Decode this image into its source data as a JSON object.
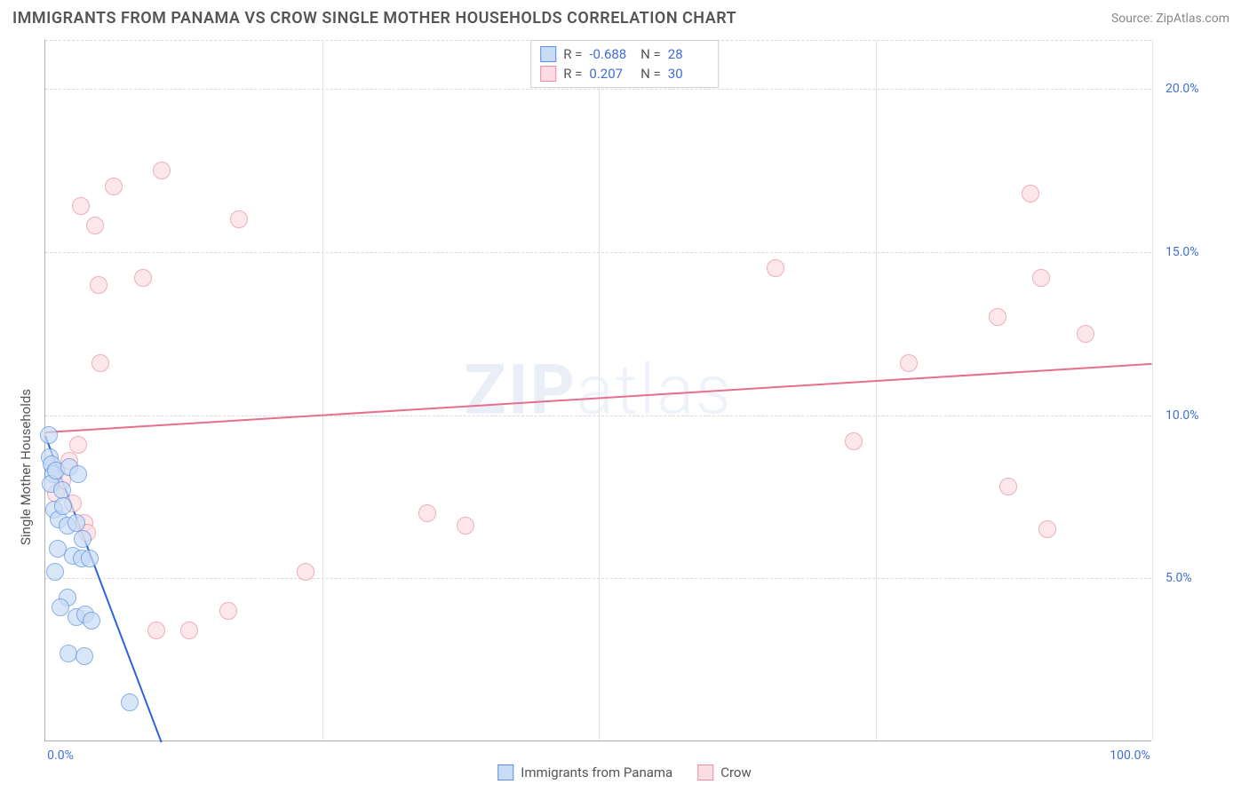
{
  "header": {
    "title": "IMMIGRANTS FROM PANAMA VS CROW SINGLE MOTHER HOUSEHOLDS CORRELATION CHART",
    "source_prefix": "Source: ",
    "source_name": "ZipAtlas.com"
  },
  "watermark": {
    "bold": "ZIP",
    "light": "atlas"
  },
  "chart": {
    "type": "scatter",
    "background_color": "#ffffff",
    "grid_color": "#d9d9d9",
    "axis_color": "#b0b0b0",
    "tick_label_color": "#3f6fd6",
    "axis_title_color": "#555555",
    "yaxis_title": "Single Mother Households",
    "xlim": [
      0,
      100
    ],
    "ylim": [
      0,
      21.5
    ],
    "yticks": [
      {
        "v": 5,
        "label": "5.0%"
      },
      {
        "v": 10,
        "label": "10.0%"
      },
      {
        "v": 15,
        "label": "15.0%"
      },
      {
        "v": 20,
        "label": "20.0%"
      }
    ],
    "xticks_lines": [
      25,
      50,
      75,
      100
    ],
    "xticks_labels": [
      {
        "v": 0,
        "label": "0.0%"
      },
      {
        "v": 100,
        "label": "100.0%"
      }
    ],
    "marker_diameter": 20,
    "marker_border_width": 1.2,
    "series": {
      "blue": {
        "label": "Immigrants from Panama",
        "fill": "#c8dcf5",
        "stroke": "#5b8fe0",
        "fill_opacity": 0.7,
        "trend": {
          "x1": 0,
          "y1": 9.4,
          "x2": 10.5,
          "y2": 0.0,
          "color": "#2f62d9",
          "width": 2
        },
        "points": [
          [
            0.3,
            9.4
          ],
          [
            0.4,
            8.7
          ],
          [
            0.6,
            8.5
          ],
          [
            0.7,
            8.2
          ],
          [
            0.5,
            7.9
          ],
          [
            1.0,
            8.3
          ],
          [
            1.5,
            7.7
          ],
          [
            2.2,
            8.4
          ],
          [
            3.0,
            8.2
          ],
          [
            0.8,
            7.1
          ],
          [
            1.2,
            6.8
          ],
          [
            1.6,
            7.2
          ],
          [
            2.0,
            6.6
          ],
          [
            2.8,
            6.7
          ],
          [
            3.4,
            6.2
          ],
          [
            1.1,
            5.9
          ],
          [
            2.5,
            5.7
          ],
          [
            0.9,
            5.2
          ],
          [
            3.3,
            5.6
          ],
          [
            4.0,
            5.6
          ],
          [
            2.0,
            4.4
          ],
          [
            1.4,
            4.1
          ],
          [
            2.8,
            3.8
          ],
          [
            3.6,
            3.9
          ],
          [
            4.2,
            3.7
          ],
          [
            2.1,
            2.7
          ],
          [
            3.5,
            2.6
          ],
          [
            7.6,
            1.2
          ]
        ]
      },
      "pink": {
        "label": "Crow",
        "fill": "#fcdde3",
        "stroke": "#e88ca0",
        "fill_opacity": 0.7,
        "trend": {
          "x1": 0,
          "y1": 9.5,
          "x2": 100,
          "y2": 11.6,
          "color": "#e76f8d",
          "width": 2
        },
        "points": [
          [
            3.2,
            16.4
          ],
          [
            4.5,
            15.8
          ],
          [
            6.2,
            17.0
          ],
          [
            10.5,
            17.5
          ],
          [
            17.5,
            16.0
          ],
          [
            4.8,
            14.0
          ],
          [
            8.8,
            14.2
          ],
          [
            5.0,
            11.6
          ],
          [
            3.0,
            9.1
          ],
          [
            1.5,
            8.0
          ],
          [
            2.5,
            7.3
          ],
          [
            3.5,
            6.7
          ],
          [
            1.0,
            7.6
          ],
          [
            34.5,
            7.0
          ],
          [
            38.0,
            6.6
          ],
          [
            23.5,
            5.2
          ],
          [
            16.5,
            4.0
          ],
          [
            10.0,
            3.4
          ],
          [
            13.0,
            3.4
          ],
          [
            66.0,
            14.5
          ],
          [
            73.0,
            9.2
          ],
          [
            78.0,
            11.6
          ],
          [
            86.0,
            13.0
          ],
          [
            87.0,
            7.8
          ],
          [
            89.0,
            16.8
          ],
          [
            90.0,
            14.2
          ],
          [
            94.0,
            12.5
          ],
          [
            90.5,
            6.5
          ],
          [
            3.8,
            6.4
          ],
          [
            2.2,
            8.6
          ]
        ]
      }
    },
    "legend_top": {
      "rows": [
        {
          "swatch": "blue",
          "r": "-0.688",
          "n": "28"
        },
        {
          "swatch": "pink",
          "r": "0.207",
          "n": "30"
        }
      ],
      "r_prefix": "R =",
      "n_prefix": "N ="
    }
  }
}
